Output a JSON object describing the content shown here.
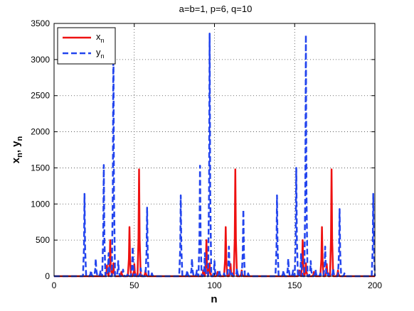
{
  "chart_data": {
    "type": "line",
    "title": "a=b=1, p=6, q=10",
    "xlabel": {
      "base": "n"
    },
    "ylabel": {
      "x_base": "x",
      "x_sub": "n",
      "sep": ", ",
      "y_base": "y",
      "y_sub": "n"
    },
    "xlim": [
      0,
      200
    ],
    "ylim": [
      0,
      3500
    ],
    "xticks": [
      0,
      50,
      100,
      150,
      200
    ],
    "yticks": [
      0,
      500,
      1000,
      1500,
      2000,
      2500,
      3000,
      3500
    ],
    "grid": true,
    "legend_position": "top-left",
    "series": [
      {
        "name": {
          "base": "x",
          "sub": "n"
        },
        "color": "#ee1111",
        "style": "solid",
        "peaks": [
          [
            33,
            150
          ],
          [
            35,
            500
          ],
          [
            37,
            180
          ],
          [
            42,
            60
          ],
          [
            47,
            680
          ],
          [
            50,
            170
          ],
          [
            53,
            1480
          ],
          [
            57,
            80
          ],
          [
            93,
            80
          ],
          [
            95,
            500
          ],
          [
            97,
            180
          ],
          [
            102,
            60
          ],
          [
            107,
            680
          ],
          [
            110,
            170
          ],
          [
            113,
            1480
          ],
          [
            117,
            80
          ],
          [
            153,
            80
          ],
          [
            155,
            500
          ],
          [
            157,
            180
          ],
          [
            162,
            60
          ],
          [
            167,
            680
          ],
          [
            170,
            170
          ],
          [
            173,
            1480
          ],
          [
            177,
            80
          ]
        ]
      },
      {
        "name": {
          "base": "y",
          "sub": "n"
        },
        "color": "#2244ee",
        "style": "dashed",
        "peaks": [
          [
            19,
            1140
          ],
          [
            23,
            80
          ],
          [
            26,
            240
          ],
          [
            29,
            80
          ],
          [
            31,
            1540
          ],
          [
            34,
            320
          ],
          [
            37,
            3320
          ],
          [
            40,
            210
          ],
          [
            43,
            90
          ],
          [
            46,
            40
          ],
          [
            49,
            410
          ],
          [
            51,
            40
          ],
          [
            54,
            110
          ],
          [
            58,
            950
          ],
          [
            61,
            40
          ],
          [
            79,
            1120
          ],
          [
            83,
            80
          ],
          [
            86,
            240
          ],
          [
            89,
            80
          ],
          [
            91,
            1530
          ],
          [
            94,
            320
          ],
          [
            97,
            3360
          ],
          [
            100,
            210
          ],
          [
            103,
            90
          ],
          [
            106,
            40
          ],
          [
            109,
            410
          ],
          [
            111,
            40
          ],
          [
            114,
            110
          ],
          [
            118,
            920
          ],
          [
            121,
            40
          ],
          [
            139,
            1120
          ],
          [
            143,
            80
          ],
          [
            146,
            240
          ],
          [
            149,
            80
          ],
          [
            151,
            1500
          ],
          [
            154,
            320
          ],
          [
            157,
            3340
          ],
          [
            160,
            210
          ],
          [
            163,
            90
          ],
          [
            166,
            40
          ],
          [
            169,
            410
          ],
          [
            171,
            40
          ],
          [
            174,
            110
          ],
          [
            178,
            930
          ],
          [
            181,
            40
          ],
          [
            199,
            1140
          ]
        ]
      }
    ]
  }
}
